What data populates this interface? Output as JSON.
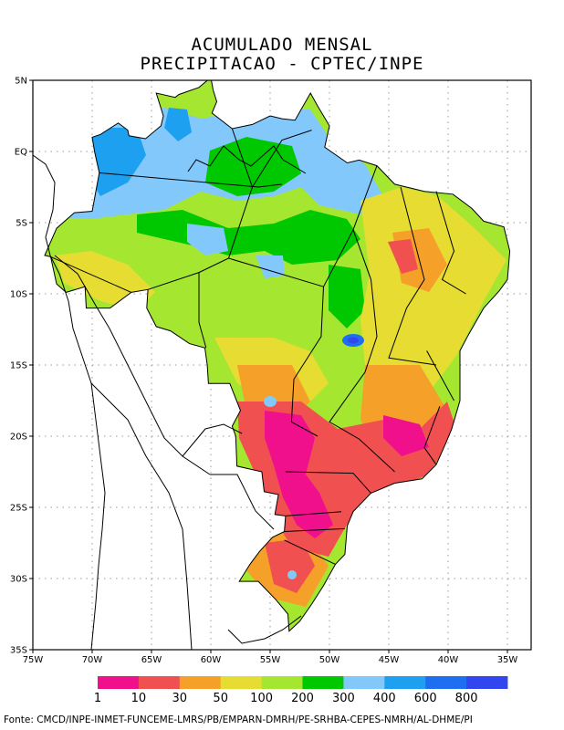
{
  "title": {
    "line1": "ACUMULADO MENSAL",
    "line2": "PRECIPITACAO - CPTEC/INPE"
  },
  "map": {
    "extent": {
      "lon": [
        -75,
        -33
      ],
      "lat": [
        -35,
        5
      ]
    },
    "lat_ticks": [
      {
        "value": 5,
        "label": "5N"
      },
      {
        "value": 0,
        "label": "EQ"
      },
      {
        "value": -5,
        "label": "5S"
      },
      {
        "value": -10,
        "label": "10S"
      },
      {
        "value": -15,
        "label": "15S"
      },
      {
        "value": -20,
        "label": "20S"
      },
      {
        "value": -25,
        "label": "25S"
      },
      {
        "value": -30,
        "label": "30S"
      },
      {
        "value": -35,
        "label": "35S"
      }
    ],
    "lon_ticks": [
      {
        "value": -75,
        "label": "75W"
      },
      {
        "value": -70,
        "label": "70W"
      },
      {
        "value": -65,
        "label": "65W"
      },
      {
        "value": -60,
        "label": "60W"
      },
      {
        "value": -55,
        "label": "55W"
      },
      {
        "value": -50,
        "label": "50W"
      },
      {
        "value": -45,
        "label": "45W"
      },
      {
        "value": -40,
        "label": "40W"
      },
      {
        "value": -35,
        "label": "35W"
      }
    ],
    "background_color": "#a5e631"
  },
  "legend": {
    "colors": [
      "#f0108c",
      "#f05050",
      "#f5a028",
      "#e6dc32",
      "#a5e631",
      "#00c800",
      "#82c8fa",
      "#1ea0f0",
      "#1e6ef0",
      "#3246f0"
    ],
    "labels": [
      "1",
      "10",
      "30",
      "50",
      "100",
      "200",
      "300",
      "400",
      "600",
      "800"
    ]
  },
  "footer": {
    "text": "Fonte: CMCD/INPE-INMET-FUNCEME-LMRS/PB/EMPARN-DMRH/PE-SRHBA-CEPES-NMRH/AL-DHME/PI"
  }
}
